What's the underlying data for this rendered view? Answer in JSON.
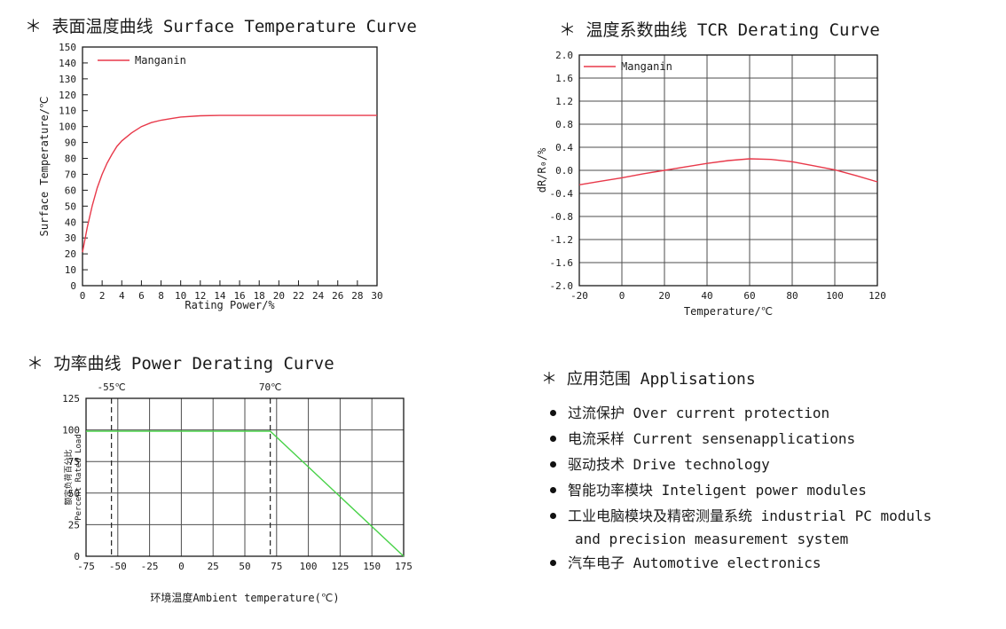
{
  "page": {
    "background": "#ffffff"
  },
  "colors": {
    "curve_red": "#e8394a",
    "curve_green": "#49d249",
    "grid": "#4d4d4d",
    "axis": "#1a1a1a",
    "text": "#1a1a1a"
  },
  "chart_data": [
    {
      "type": "line",
      "title": "＊ 表面温度曲线 Surface Temperature Curve",
      "xlabel": "Rating Power/%",
      "ylabel": "Surface Temperature/℃",
      "xlim": [
        0,
        30
      ],
      "xtick_step": 2,
      "ylim": [
        0,
        150
      ],
      "ytick_step": 10,
      "x_decimals": 0,
      "y_decimals": 0,
      "grid": false,
      "legend": [
        {
          "label": "Manganin"
        }
      ],
      "series": [
        {
          "name": "Manganin",
          "color": "#e8394a",
          "points": [
            [
              0,
              21
            ],
            [
              0.5,
              37
            ],
            [
              1,
              50.5
            ],
            [
              1.5,
              61.5
            ],
            [
              2,
              70
            ],
            [
              2.5,
              77
            ],
            [
              3,
              82.5
            ],
            [
              3.5,
              87.5
            ],
            [
              4,
              91
            ],
            [
              5,
              96
            ],
            [
              6,
              100
            ],
            [
              7,
              102.5
            ],
            [
              8,
              104
            ],
            [
              9,
              105
            ],
            [
              10,
              106
            ],
            [
              12,
              106.8
            ],
            [
              14,
              107
            ],
            [
              16,
              107
            ],
            [
              18,
              107
            ],
            [
              20,
              107
            ],
            [
              22,
              107
            ],
            [
              24,
              107
            ],
            [
              26,
              107
            ],
            [
              28,
              107
            ],
            [
              30,
              107
            ]
          ]
        }
      ]
    },
    {
      "type": "line",
      "title": "＊ 温度系数曲线 TCR Derating Curve",
      "xlabel": "Temperature/℃",
      "ylabel": "dR/R₀/%",
      "xlim": [
        -20,
        120
      ],
      "xtick_step": 20,
      "ylim": [
        -2.0,
        2.0
      ],
      "ytick_step": 0.4,
      "x_decimals": 0,
      "y_decimals": 1,
      "grid": true,
      "legend": [
        {
          "label": "Manganin"
        }
      ],
      "series": [
        {
          "name": "Manganin",
          "color": "#e8394a",
          "points": [
            [
              -20,
              -0.25
            ],
            [
              -10,
              -0.19
            ],
            [
              0,
              -0.13
            ],
            [
              10,
              -0.06
            ],
            [
              20,
              0
            ],
            [
              30,
              0.06
            ],
            [
              40,
              0.12
            ],
            [
              50,
              0.17
            ],
            [
              60,
              0.2
            ],
            [
              70,
              0.19
            ],
            [
              80,
              0.15
            ],
            [
              90,
              0.08
            ],
            [
              100,
              0.01
            ],
            [
              110,
              -0.09
            ],
            [
              120,
              -0.2
            ]
          ]
        }
      ]
    },
    {
      "type": "line",
      "title": "＊ 功率曲线 Power Derating Curve",
      "xlabel": "环境温度Ambient temperature(℃)",
      "ylabel": [
        "额定负荷百分比",
        "Percent Rated Load"
      ],
      "xlim": [
        -75,
        175
      ],
      "xtick_step": 25,
      "ylim": [
        0,
        125
      ],
      "ytick_step": 25,
      "x_decimals": 0,
      "y_decimals": 0,
      "grid": true,
      "annotations": [
        {
          "x": -55,
          "label": "-55℃"
        },
        {
          "x": 70,
          "label": "70℃"
        }
      ],
      "series": [
        {
          "name": "Power derating",
          "color": "#49d249",
          "points": [
            [
              -75,
              99
            ],
            [
              70,
              99
            ],
            [
              175,
              0
            ]
          ]
        }
      ]
    }
  ],
  "applications": {
    "title": "＊ 应用范围 Applisations",
    "items": [
      {
        "lines": [
          "过流保护 Over current protection"
        ]
      },
      {
        "lines": [
          "电流采样 Current sensenapplications"
        ]
      },
      {
        "lines": [
          "驱动技术 Drive technology"
        ]
      },
      {
        "lines": [
          "智能功率模块 Inteligent power modules"
        ]
      },
      {
        "lines": [
          "工业电脑模块及精密测量系统 industrial PC moduls",
          "and precision measurement system"
        ]
      },
      {
        "lines": [
          "汽车电子 Automotive electronics"
        ]
      }
    ]
  }
}
